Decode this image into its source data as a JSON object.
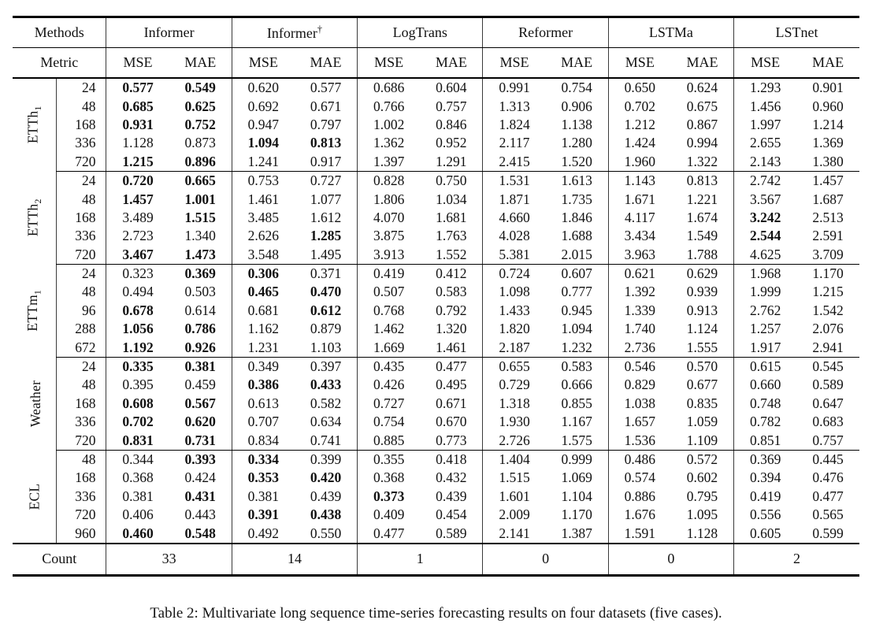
{
  "caption": "Table 2: Multivariate long sequence time-series forecasting results on four datasets (five cases).",
  "table": {
    "methods_label": "Methods",
    "metric_label": "Metric",
    "count_label": "Count",
    "methods": [
      {
        "label": "Informer",
        "sup": ""
      },
      {
        "label": "Informer",
        "sup": "†"
      },
      {
        "label": "LogTrans",
        "sup": ""
      },
      {
        "label": "Reformer",
        "sup": ""
      },
      {
        "label": "LSTMa",
        "sup": ""
      },
      {
        "label": "LSTnet",
        "sup": ""
      }
    ],
    "metrics": [
      "MSE",
      "MAE"
    ],
    "counts": [
      "33",
      "14",
      "1",
      "0",
      "0",
      "2"
    ],
    "groups": [
      {
        "label": "ETTh",
        "sub": "1",
        "rows": [
          {
            "len": "24",
            "v": [
              "0.577",
              "0.549",
              "0.620",
              "0.577",
              "0.686",
              "0.604",
              "0.991",
              "0.754",
              "0.650",
              "0.624",
              "1.293",
              "0.901"
            ],
            "b": [
              0,
              1
            ]
          },
          {
            "len": "48",
            "v": [
              "0.685",
              "0.625",
              "0.692",
              "0.671",
              "0.766",
              "0.757",
              "1.313",
              "0.906",
              "0.702",
              "0.675",
              "1.456",
              "0.960"
            ],
            "b": [
              0,
              1
            ]
          },
          {
            "len": "168",
            "v": [
              "0.931",
              "0.752",
              "0.947",
              "0.797",
              "1.002",
              "0.846",
              "1.824",
              "1.138",
              "1.212",
              "0.867",
              "1.997",
              "1.214"
            ],
            "b": [
              0,
              1
            ]
          },
          {
            "len": "336",
            "v": [
              "1.128",
              "0.873",
              "1.094",
              "0.813",
              "1.362",
              "0.952",
              "2.117",
              "1.280",
              "1.424",
              "0.994",
              "2.655",
              "1.369"
            ],
            "b": [
              2,
              3
            ]
          },
          {
            "len": "720",
            "v": [
              "1.215",
              "0.896",
              "1.241",
              "0.917",
              "1.397",
              "1.291",
              "2.415",
              "1.520",
              "1.960",
              "1.322",
              "2.143",
              "1.380"
            ],
            "b": [
              0,
              1
            ]
          }
        ]
      },
      {
        "label": "ETTh",
        "sub": "2",
        "rows": [
          {
            "len": "24",
            "v": [
              "0.720",
              "0.665",
              "0.753",
              "0.727",
              "0.828",
              "0.750",
              "1.531",
              "1.613",
              "1.143",
              "0.813",
              "2.742",
              "1.457"
            ],
            "b": [
              0,
              1
            ]
          },
          {
            "len": "48",
            "v": [
              "1.457",
              "1.001",
              "1.461",
              "1.077",
              "1.806",
              "1.034",
              "1.871",
              "1.735",
              "1.671",
              "1.221",
              "3.567",
              "1.687"
            ],
            "b": [
              0,
              1
            ]
          },
          {
            "len": "168",
            "v": [
              "3.489",
              "1.515",
              "3.485",
              "1.612",
              "4.070",
              "1.681",
              "4.660",
              "1.846",
              "4.117",
              "1.674",
              "3.242",
              "2.513"
            ],
            "b": [
              1,
              10
            ]
          },
          {
            "len": "336",
            "v": [
              "2.723",
              "1.340",
              "2.626",
              "1.285",
              "3.875",
              "1.763",
              "4.028",
              "1.688",
              "3.434",
              "1.549",
              "2.544",
              "2.591"
            ],
            "b": [
              3,
              10
            ]
          },
          {
            "len": "720",
            "v": [
              "3.467",
              "1.473",
              "3.548",
              "1.495",
              "3.913",
              "1.552",
              "5.381",
              "2.015",
              "3.963",
              "1.788",
              "4.625",
              "3.709"
            ],
            "b": [
              0,
              1
            ]
          }
        ]
      },
      {
        "label": "ETTm",
        "sub": "1",
        "rows": [
          {
            "len": "24",
            "v": [
              "0.323",
              "0.369",
              "0.306",
              "0.371",
              "0.419",
              "0.412",
              "0.724",
              "0.607",
              "0.621",
              "0.629",
              "1.968",
              "1.170"
            ],
            "b": [
              1,
              2
            ]
          },
          {
            "len": "48",
            "v": [
              "0.494",
              "0.503",
              "0.465",
              "0.470",
              "0.507",
              "0.583",
              "1.098",
              "0.777",
              "1.392",
              "0.939",
              "1.999",
              "1.215"
            ],
            "b": [
              2,
              3
            ]
          },
          {
            "len": "96",
            "v": [
              "0.678",
              "0.614",
              "0.681",
              "0.612",
              "0.768",
              "0.792",
              "1.433",
              "0.945",
              "1.339",
              "0.913",
              "2.762",
              "1.542"
            ],
            "b": [
              0,
              3
            ]
          },
          {
            "len": "288",
            "v": [
              "1.056",
              "0.786",
              "1.162",
              "0.879",
              "1.462",
              "1.320",
              "1.820",
              "1.094",
              "1.740",
              "1.124",
              "1.257",
              "2.076"
            ],
            "b": [
              0,
              1
            ]
          },
          {
            "len": "672",
            "v": [
              "1.192",
              "0.926",
              "1.231",
              "1.103",
              "1.669",
              "1.461",
              "2.187",
              "1.232",
              "2.736",
              "1.555",
              "1.917",
              "2.941"
            ],
            "b": [
              0,
              1
            ]
          }
        ]
      },
      {
        "label": "Weather",
        "sub": "",
        "rows": [
          {
            "len": "24",
            "v": [
              "0.335",
              "0.381",
              "0.349",
              "0.397",
              "0.435",
              "0.477",
              "0.655",
              "0.583",
              "0.546",
              "0.570",
              "0.615",
              "0.545"
            ],
            "b": [
              0,
              1
            ]
          },
          {
            "len": "48",
            "v": [
              "0.395",
              "0.459",
              "0.386",
              "0.433",
              "0.426",
              "0.495",
              "0.729",
              "0.666",
              "0.829",
              "0.677",
              "0.660",
              "0.589"
            ],
            "b": [
              2,
              3
            ]
          },
          {
            "len": "168",
            "v": [
              "0.608",
              "0.567",
              "0.613",
              "0.582",
              "0.727",
              "0.671",
              "1.318",
              "0.855",
              "1.038",
              "0.835",
              "0.748",
              "0.647"
            ],
            "b": [
              0,
              1
            ]
          },
          {
            "len": "336",
            "v": [
              "0.702",
              "0.620",
              "0.707",
              "0.634",
              "0.754",
              "0.670",
              "1.930",
              "1.167",
              "1.657",
              "1.059",
              "0.782",
              "0.683"
            ],
            "b": [
              0,
              1
            ]
          },
          {
            "len": "720",
            "v": [
              "0.831",
              "0.731",
              "0.834",
              "0.741",
              "0.885",
              "0.773",
              "2.726",
              "1.575",
              "1.536",
              "1.109",
              "0.851",
              "0.757"
            ],
            "b": [
              0,
              1
            ]
          }
        ]
      },
      {
        "label": "ECL",
        "sub": "",
        "rows": [
          {
            "len": "48",
            "v": [
              "0.344",
              "0.393",
              "0.334",
              "0.399",
              "0.355",
              "0.418",
              "1.404",
              "0.999",
              "0.486",
              "0.572",
              "0.369",
              "0.445"
            ],
            "b": [
              1,
              2
            ]
          },
          {
            "len": "168",
            "v": [
              "0.368",
              "0.424",
              "0.353",
              "0.420",
              "0.368",
              "0.432",
              "1.515",
              "1.069",
              "0.574",
              "0.602",
              "0.394",
              "0.476"
            ],
            "b": [
              2,
              3
            ]
          },
          {
            "len": "336",
            "v": [
              "0.381",
              "0.431",
              "0.381",
              "0.439",
              "0.373",
              "0.439",
              "1.601",
              "1.104",
              "0.886",
              "0.795",
              "0.419",
              "0.477"
            ],
            "b": [
              1,
              4
            ]
          },
          {
            "len": "720",
            "v": [
              "0.406",
              "0.443",
              "0.391",
              "0.438",
              "0.409",
              "0.454",
              "2.009",
              "1.170",
              "1.676",
              "1.095",
              "0.556",
              "0.565"
            ],
            "b": [
              2,
              3
            ]
          },
          {
            "len": "960",
            "v": [
              "0.460",
              "0.548",
              "0.492",
              "0.550",
              "0.477",
              "0.589",
              "2.141",
              "1.387",
              "1.591",
              "1.128",
              "0.605",
              "0.599"
            ],
            "b": [
              0,
              1
            ]
          }
        ]
      }
    ]
  }
}
